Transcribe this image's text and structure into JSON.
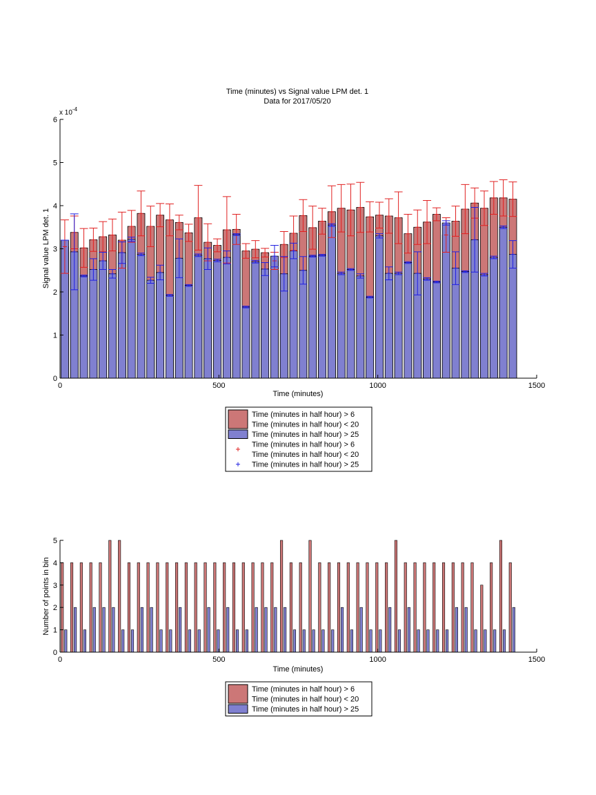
{
  "chart_data": [
    {
      "type": "bar",
      "title": "Time (minutes) vs Signal value LPM det. 1",
      "subtitle": "Data for 2017/05/20",
      "xlabel": "Time (minutes)",
      "ylabel": "Signal value LPM det. 1",
      "y_exponent_label": "x 10",
      "y_exponent": "-4",
      "xlim": [
        0,
        1500
      ],
      "ylim": [
        0,
        6
      ],
      "xticks": [
        0,
        500,
        1000,
        1500
      ],
      "yticks": [
        0,
        1,
        2,
        3,
        4,
        5,
        6
      ],
      "grid": false,
      "legend_position": "below",
      "bar_width": 24,
      "colors": {
        "red_fill": "#cc7777",
        "blue_fill": "#8080d0",
        "red_mark": "#e02020",
        "blue_mark": "#2020e0",
        "edge": "#000000"
      },
      "legend": [
        {
          "kind": "patch",
          "color": "#cc7777",
          "lines": [
            "Time (minutes in half hour) > 6",
            "Time (minutes in half hour) < 20"
          ]
        },
        {
          "kind": "patch",
          "color": "#8080d0",
          "lines": [
            "Time (minutes in half hour) > 25"
          ]
        },
        {
          "kind": "marker",
          "color": "#e02020",
          "lines": [
            "Time (minutes in half hour) > 6",
            "Time (minutes in half hour) < 20"
          ]
        },
        {
          "kind": "marker",
          "color": "#2020e0",
          "lines": [
            "Time (minutes in half hour) > 25"
          ]
        }
      ],
      "x": [
        15,
        45,
        75,
        105,
        135,
        165,
        195,
        225,
        255,
        285,
        315,
        345,
        375,
        405,
        435,
        465,
        495,
        525,
        555,
        585,
        615,
        645,
        675,
        705,
        735,
        765,
        795,
        825,
        855,
        885,
        915,
        945,
        975,
        1005,
        1035,
        1065,
        1095,
        1125,
        1155,
        1185,
        1215,
        1245,
        1275,
        1305,
        1335,
        1365,
        1395,
        1425
      ],
      "series": [
        {
          "name": "Time (minutes in half hour) > 6 Time (minutes in half hour) < 20",
          "values": [
            3.05,
            3.38,
            3.02,
            3.21,
            3.28,
            3.32,
            3.2,
            3.52,
            3.82,
            3.52,
            3.78,
            3.67,
            3.61,
            3.37,
            3.72,
            3.15,
            3.08,
            3.44,
            3.45,
            2.95,
            2.99,
            2.91,
            2.72,
            3.1,
            3.36,
            3.77,
            3.49,
            3.64,
            3.86,
            3.94,
            3.9,
            3.96,
            3.74,
            3.78,
            3.76,
            3.72,
            3.35,
            3.5,
            3.62,
            3.8,
            3.32,
            3.64,
            3.92,
            4.06,
            3.94,
            4.18,
            4.18,
            4.15
          ],
          "err": [
            0.62,
            0.38,
            0.45,
            0.27,
            0.35,
            0.37,
            0.65,
            0.37,
            0.52,
            0.47,
            0.27,
            0.37,
            0.17,
            0.2,
            0.75,
            0.43,
            0.15,
            0.77,
            0.35,
            0.17,
            0.2,
            0.1,
            0.2,
            0.3,
            0.4,
            0.37,
            0.5,
            0.3,
            0.6,
            0.55,
            0.6,
            0.58,
            0.35,
            0.3,
            0.4,
            0.6,
            0.45,
            0.4,
            0.5,
            0.15,
            0.4,
            0.35,
            0.57,
            0.35,
            0.4,
            0.38,
            0.42,
            0.4
          ]
        },
        {
          "name": "Time (minutes in half hour) > 25",
          "values": [
            3.2,
            2.93,
            2.37,
            2.52,
            2.72,
            2.42,
            2.91,
            3.22,
            2.87,
            2.27,
            2.45,
            1.92,
            2.78,
            2.15,
            2.85,
            2.77,
            2.73,
            2.8,
            3.33,
            1.65,
            2.7,
            2.53,
            2.83,
            2.42,
            2.95,
            2.5,
            2.83,
            2.85,
            3.55,
            2.43,
            2.52,
            2.37,
            1.88,
            3.3,
            2.43,
            2.43,
            2.68,
            2.43,
            2.3,
            2.23,
            3.6,
            2.55,
            2.47,
            3.21,
            2.4,
            2.8,
            3.5,
            2.87
          ],
          "err": [
            0.0,
            0.88,
            0.02,
            0.25,
            0.2,
            0.1,
            0.25,
            0.05,
            0.03,
            0.07,
            0.17,
            0.02,
            0.45,
            0.02,
            0.03,
            0.25,
            0.03,
            0.15,
            0.02,
            0.02,
            0.03,
            0.15,
            0.25,
            0.4,
            0.18,
            0.32,
            0.02,
            0.02,
            0.03,
            0.03,
            0.02,
            0.05,
            0.02,
            0.05,
            0.15,
            0.03,
            0.02,
            0.5,
            0.03,
            0.02,
            0.05,
            0.38,
            0.02,
            0.75,
            0.03,
            0.03,
            0.03,
            0.32
          ]
        }
      ]
    },
    {
      "type": "bar",
      "title": "",
      "xlabel": "Time (minutes)",
      "ylabel": "Number of points in bin",
      "xlim": [
        0,
        1500
      ],
      "ylim": [
        0,
        5
      ],
      "xticks": [
        0,
        500,
        1000,
        1500
      ],
      "yticks": [
        0,
        1,
        2,
        3,
        4,
        5
      ],
      "grid": false,
      "legend_position": "below",
      "bar_width": 10,
      "colors": {
        "red_fill": "#cc7777",
        "blue_fill": "#8080d0",
        "edge": "#000000"
      },
      "legend": [
        {
          "kind": "patch",
          "color": "#cc7777",
          "lines": [
            "Time (minutes in half hour) > 6",
            "Time (minutes in half hour) < 20"
          ]
        },
        {
          "kind": "patch",
          "color": "#8080d0",
          "lines": [
            "Time (minutes in half hour) > 25"
          ]
        }
      ],
      "x": [
        0,
        30,
        60,
        90,
        120,
        150,
        180,
        210,
        240,
        270,
        300,
        330,
        360,
        390,
        420,
        450,
        480,
        510,
        540,
        570,
        600,
        630,
        660,
        690,
        720,
        750,
        780,
        810,
        840,
        870,
        900,
        930,
        960,
        990,
        1020,
        1050,
        1080,
        1110,
        1140,
        1170,
        1200,
        1230,
        1260,
        1290,
        1320,
        1350,
        1380,
        1410
      ],
      "series": [
        {
          "name": "Time (minutes in half hour) > 6 Time (minutes in half hour) < 20",
          "values": [
            4,
            4,
            4,
            4,
            4,
            5,
            5,
            4,
            4,
            4,
            4,
            4,
            4,
            4,
            4,
            4,
            4,
            4,
            4,
            4,
            4,
            4,
            4,
            5,
            4,
            4,
            5,
            4,
            4,
            4,
            4,
            4,
            4,
            4,
            4,
            5,
            4,
            4,
            4,
            4,
            4,
            4,
            4,
            4,
            3,
            4,
            5,
            4
          ]
        },
        {
          "name": "Time (minutes in half hour) > 25",
          "values": [
            1,
            2,
            1,
            2,
            2,
            2,
            1,
            1,
            2,
            2,
            1,
            1,
            2,
            1,
            1,
            2,
            1,
            2,
            1,
            1,
            2,
            2,
            2,
            2,
            1,
            1,
            1,
            1,
            1,
            2,
            1,
            2,
            1,
            1,
            2,
            1,
            2,
            1,
            1,
            1,
            1,
            2,
            2,
            1,
            1,
            1,
            1,
            2
          ]
        }
      ]
    }
  ]
}
